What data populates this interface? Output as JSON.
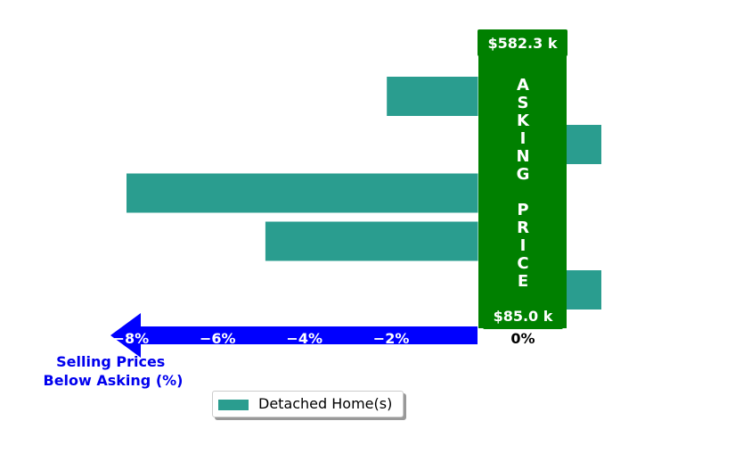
{
  "chart_data": {
    "type": "bar",
    "orientation": "horizontal",
    "categories": [
      "",
      "",
      "",
      "",
      ""
    ],
    "series": [
      {
        "name": "Detached Home(s)",
        "values": [
          -2.1,
          0.25,
          -8.1,
          -4.9,
          0.25
        ]
      }
    ],
    "xlim": [
      -8.6,
      0
    ],
    "xticks": [
      -8,
      -6,
      -4,
      -2,
      0
    ],
    "xtick_labels": [
      "−8%",
      "−6%",
      "−4%",
      "−2%",
      "0%"
    ],
    "xlabel": "Selling Prices\nBelow Asking (%)",
    "asking_banner": {
      "text": "ASKING PRICE",
      "top_label": "$582.3 k",
      "bottom_label": "$85.0 k"
    },
    "legend_position": "lower-center",
    "grid": false,
    "colors": {
      "bar": "#2a9d8f",
      "banner": "#008000",
      "arrow": "#0000ff",
      "xlabel": "#0000ee"
    }
  }
}
